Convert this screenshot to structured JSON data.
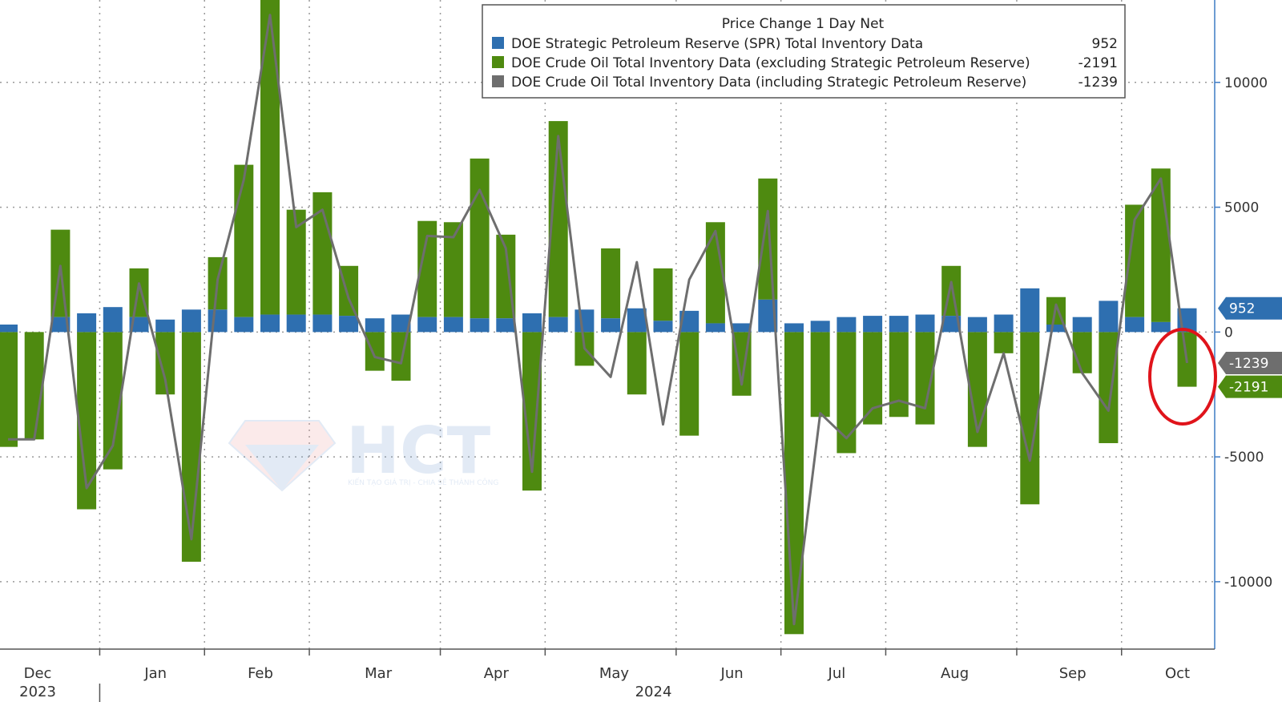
{
  "chart_data": {
    "type": "bar",
    "legend_title": "Price Change 1 Day Net",
    "legend_position": "top-right",
    "grid": true,
    "ylim": [
      -12700,
      13300
    ],
    "yticks": [
      10000,
      5000,
      0,
      -5000,
      -10000
    ],
    "ytick_labels": [
      "10000",
      "5000",
      "0",
      "-5000",
      "-10000"
    ],
    "month_labels": [
      {
        "label": "Dec",
        "week": 1.5
      },
      {
        "label": "Jan",
        "week": 6
      },
      {
        "label": "Feb",
        "week": 10
      },
      {
        "label": "Mar",
        "week": 14.5
      },
      {
        "label": "Apr",
        "week": 19
      },
      {
        "label": "May",
        "week": 23.5
      },
      {
        "label": "Jun",
        "week": 28
      },
      {
        "label": "Jul",
        "week": 32
      },
      {
        "label": "Aug",
        "week": 36.5
      },
      {
        "label": "Sep",
        "week": 41
      },
      {
        "label": "Oct",
        "week": 45
      }
    ],
    "month_separators": [
      4,
      8,
      12,
      17,
      21,
      26,
      30,
      34,
      39,
      43
    ],
    "year_labels": [
      {
        "label": "2023",
        "week": 1.5
      },
      {
        "label": "2024",
        "week": 25
      }
    ],
    "year_separator": 4,
    "series": [
      {
        "name": "DOE Strategic Petroleum Reserve (SPR) Total Inventory Data",
        "color": "#2e6fb0",
        "last_value": "952",
        "values": [
          300,
          0,
          600,
          750,
          1000,
          600,
          500,
          900,
          900,
          600,
          700,
          700,
          700,
          650,
          550,
          700,
          600,
          600,
          550,
          550,
          750,
          600,
          900,
          550,
          950,
          450,
          850,
          350,
          350,
          1300,
          350,
          450,
          600,
          650,
          650,
          700,
          650,
          600,
          700,
          1750,
          300,
          600,
          1250,
          600,
          400,
          952
        ]
      },
      {
        "name": "DOE Crude Oil Total Inventory Data (excluding Strategic Petroleum Reserve)",
        "color": "#4e8a10",
        "last_value": "-2191",
        "values": [
          -4600,
          -4300,
          3500,
          -7100,
          -5500,
          1950,
          -2500,
          -9200,
          2100,
          6100,
          12700,
          4200,
          4900,
          2000,
          -1550,
          -1950,
          3850,
          3800,
          6400,
          3350,
          -6350,
          7850,
          -1350,
          2800,
          -2500,
          2100,
          -4150,
          4050,
          -2550,
          4850,
          -12100,
          -3400,
          -4850,
          -3700,
          -3400,
          -3700,
          2000,
          -4600,
          -850,
          -6900,
          1100,
          -1650,
          -4450,
          4500,
          6150,
          -2191
        ]
      },
      {
        "name": "DOE Crude Oil Total Inventory Data (including Strategic Petroleum Reserve)",
        "color": "#6e6e6e",
        "last_value": "-1239",
        "values": [
          -4300,
          -4300,
          2650,
          -6250,
          -4550,
          1950,
          -1900,
          -8300,
          2100,
          6100,
          12700,
          4200,
          4900,
          1350,
          -1000,
          -1250,
          3850,
          3800,
          5700,
          3350,
          -5600,
          7850,
          -650,
          -1800,
          2800,
          -3700,
          2100,
          4050,
          -2100,
          4850,
          -11700,
          -3250,
          -4250,
          -3050,
          -2750,
          -3050,
          2000,
          -4000,
          -850,
          -5150,
          1100,
          -1650,
          -3150,
          4500,
          6150,
          -1239
        ]
      }
    ]
  },
  "watermark": {
    "brand": "HCT",
    "tagline": "KIẾN TẠO GIÁ TRỊ - CHIA SẺ THÀNH CÔNG"
  }
}
